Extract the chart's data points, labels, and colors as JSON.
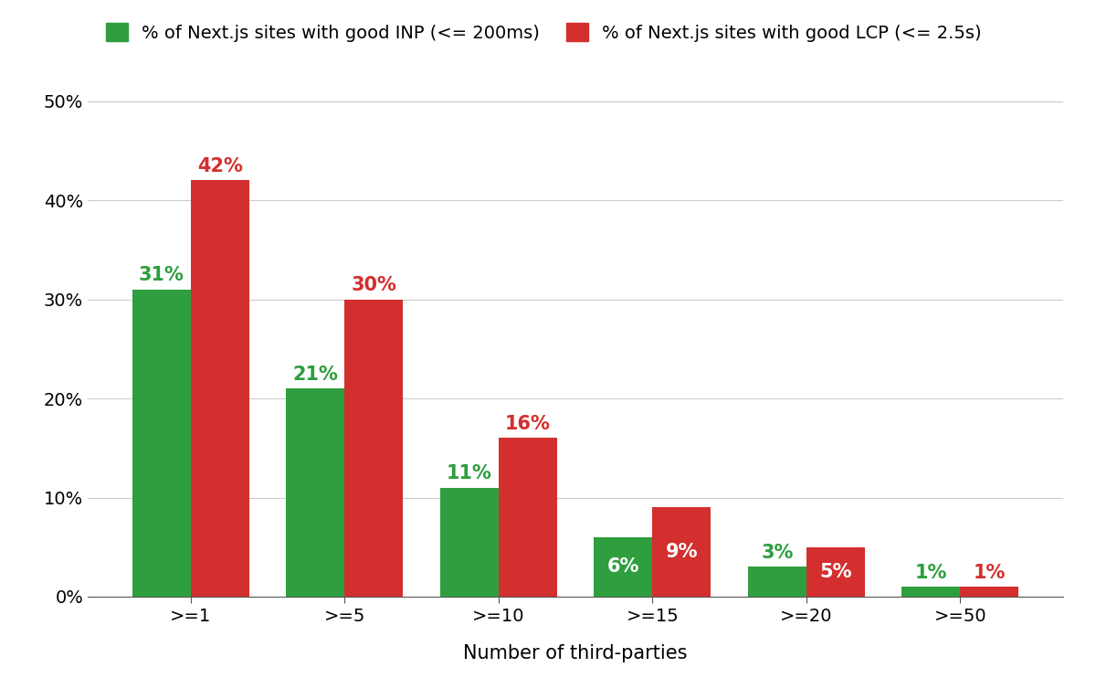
{
  "categories": [
    ">=1",
    ">=5",
    ">=10",
    ">=15",
    ">=20",
    ">=50"
  ],
  "inp_values": [
    31,
    21,
    11,
    6,
    3,
    1
  ],
  "lcp_values": [
    42,
    30,
    16,
    9,
    5,
    1
  ],
  "inp_color": "#2e9e3e",
  "lcp_color": "#d32f2f",
  "inp_label": "% of Next.js sites with good INP (<= 200ms)",
  "lcp_label": "% of Next.js sites with good LCP (<= 2.5s)",
  "xlabel": "Number of third-parties",
  "ylim": [
    0,
    52
  ],
  "yticks": [
    0,
    10,
    20,
    30,
    40,
    50
  ],
  "ytick_labels": [
    "0%",
    "10%",
    "20%",
    "30%",
    "40%",
    "50%"
  ],
  "bar_width": 0.38,
  "background_color": "#ffffff",
  "grid_color": "#cccccc",
  "label_fontsize": 15,
  "tick_fontsize": 14,
  "legend_fontsize": 14,
  "annotation_fontsize": 15,
  "inside_threshold": 5
}
